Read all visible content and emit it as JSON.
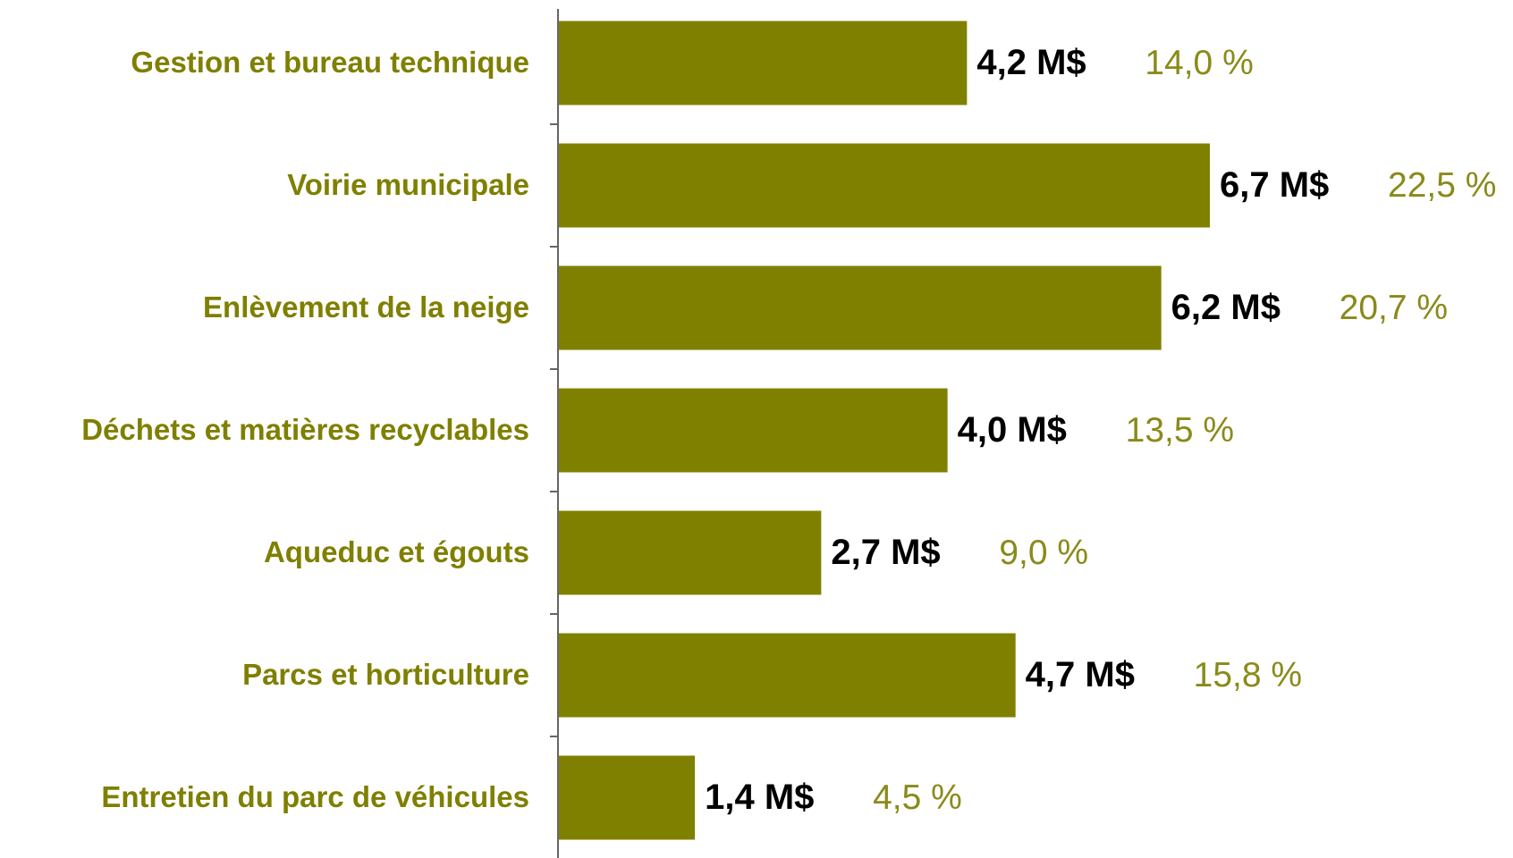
{
  "chart_data": {
    "type": "bar",
    "orientation": "horizontal",
    "categories": [
      "Gestion et bureau technique",
      "Voirie municipale",
      "Enlèvement de la neige",
      "Déchets et matières recyclables",
      "Aqueduc et égouts",
      "Parcs et horticulture",
      "Entretien du parc de véhicules"
    ],
    "values": [
      4.2,
      6.7,
      6.2,
      4.0,
      2.7,
      4.7,
      1.4
    ],
    "value_labels": [
      "4,2 M$",
      "6,7 M$",
      "6,2 M$",
      "4,0 M$",
      "2,7 M$",
      "4,7 M$",
      "1,4 M$"
    ],
    "shares": [
      14.0,
      22.5,
      20.7,
      13.5,
      9.0,
      15.8,
      4.5
    ],
    "share_labels": [
      "14,0 %",
      "22,5 %",
      "20,7 %",
      "13,5 %",
      "9,0 %",
      "15,8 %",
      "4,5 %"
    ],
    "color": "#808000"
  }
}
